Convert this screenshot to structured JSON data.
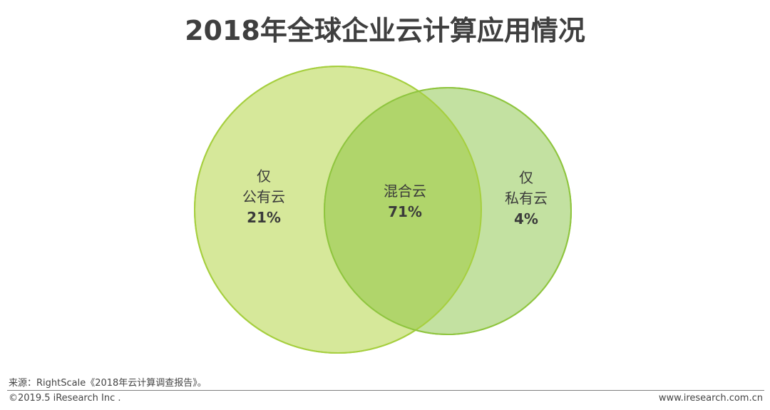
{
  "title": "2018年全球企业云计算应用情况",
  "venn": {
    "public_only": {
      "line1": "仅",
      "line2": "公有云",
      "value": "21%"
    },
    "hybrid": {
      "line1": "混合云",
      "value": "71%"
    },
    "private_only": {
      "line1": "仅",
      "line2": "私有云",
      "value": "4%"
    }
  },
  "colors": {
    "public_fill": "#d6e89a",
    "public_stroke": "#a6cf3f",
    "private_fill": "#c3e1a1",
    "private_stroke": "#8fc53f",
    "overlap_fill": "#b0d56b"
  },
  "footer": {
    "source": "来源：RightScale《2018年云计算调查报告》。",
    "copyright": "©2019.5 iResearch Inc .",
    "website": "www.iresearch.com.cn"
  }
}
